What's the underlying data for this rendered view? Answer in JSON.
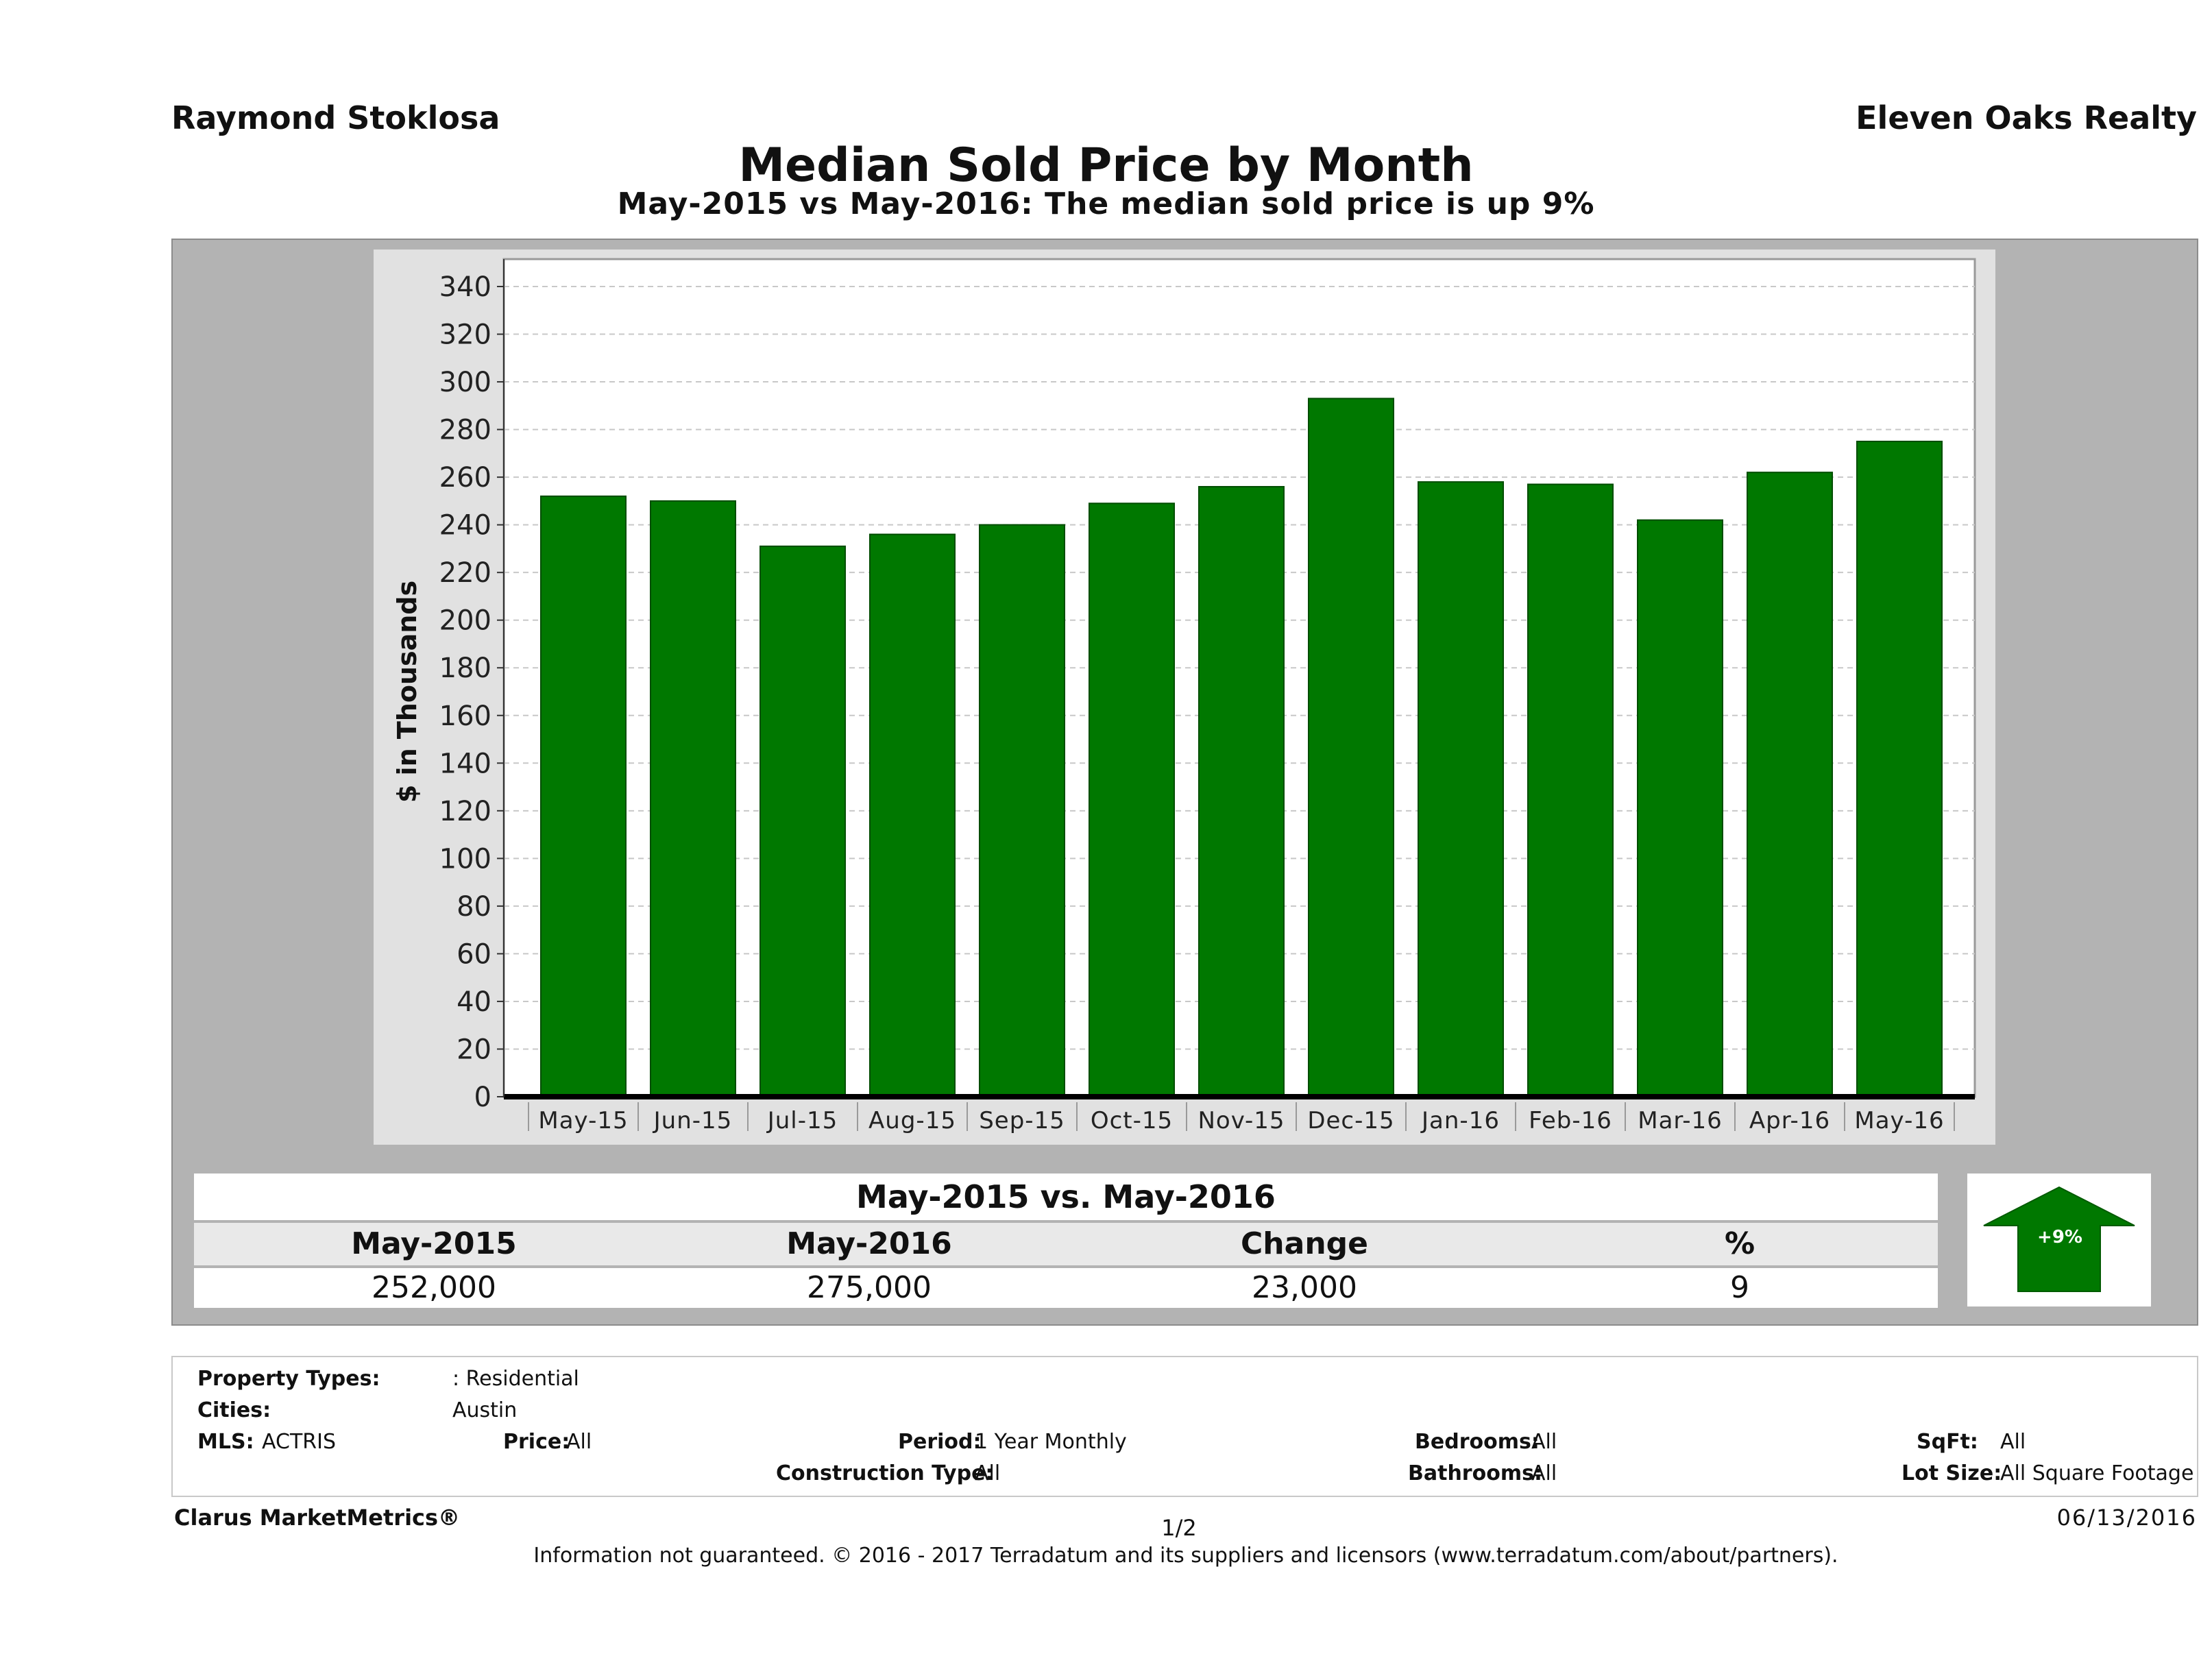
{
  "header": {
    "agent_name": "Raymond Stoklosa",
    "company": "Eleven Oaks Realty",
    "title": "Median Sold Price by Month",
    "subtitle": "May-2015 vs May-2016: The median sold price is up 9%"
  },
  "chart_data": {
    "type": "bar",
    "categories": [
      "May-15",
      "Jun-15",
      "Jul-15",
      "Aug-15",
      "Sep-15",
      "Oct-15",
      "Nov-15",
      "Dec-15",
      "Jan-16",
      "Feb-16",
      "Mar-16",
      "Apr-16",
      "May-16"
    ],
    "values": [
      252,
      250,
      231,
      236,
      240,
      249,
      256,
      293,
      258,
      257,
      242,
      262,
      275
    ],
    "ylabel": "$ in Thousands",
    "ylim": [
      0,
      350
    ],
    "yticks": [
      0,
      20,
      40,
      60,
      80,
      100,
      120,
      140,
      160,
      180,
      200,
      220,
      240,
      260,
      280,
      300,
      320,
      340
    ],
    "grid": true,
    "bar_color": "#007800"
  },
  "summary": {
    "title": "May-2015 vs. May-2016",
    "headers": [
      "May-2015",
      "May-2016",
      "Change",
      "%"
    ],
    "values": [
      "252,000",
      "275,000",
      "23,000",
      "9"
    ],
    "badge": "+9%",
    "badge_color": "#007800"
  },
  "info": {
    "property_types_label": "Property Types:",
    "property_types_value": ": Residential",
    "cities_label": "Cities:",
    "cities_value": "Austin",
    "mls_label": "MLS:",
    "mls_value": "ACTRIS",
    "price_label": "Price:",
    "price_value": "All",
    "period_label": "Period:",
    "period_value": "1 Year Monthly",
    "bedrooms_label": "Bedrooms:",
    "bedrooms_value": "All",
    "sqft_label": "SqFt:",
    "sqft_value": "All",
    "construction_label": "Construction Type:",
    "construction_value": "All",
    "bathrooms_label": "Bathrooms:",
    "bathrooms_value": "All",
    "lot_label": "Lot Size:",
    "lot_value": "All Square Footage"
  },
  "footer": {
    "brand": "Clarus MarketMetrics®",
    "page": "1/2",
    "date": "06/13/2016",
    "note": "Information not guaranteed. © 2016 - 2017 Terradatum and its suppliers and licensors (www.terradatum.com/about/partners)."
  }
}
